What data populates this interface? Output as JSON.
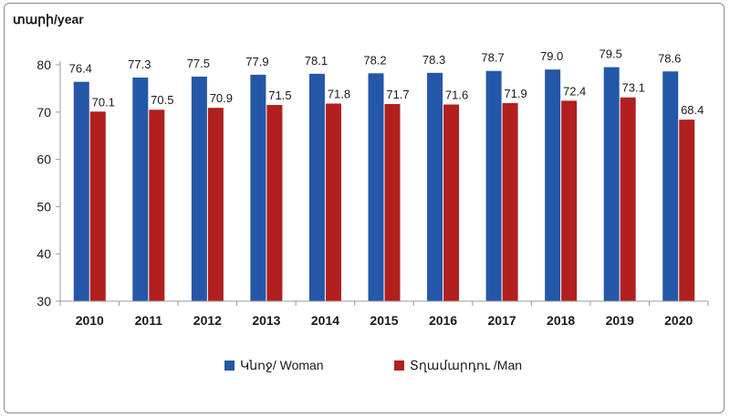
{
  "chart_data": {
    "type": "bar",
    "y_unit_label": "տարի/year",
    "categories": [
      "2010",
      "2011",
      "2012",
      "2013",
      "2014",
      "2015",
      "2016",
      "2017",
      "2018",
      "2019",
      "2020"
    ],
    "series": [
      {
        "name": "Կնոջ/ Woman",
        "color": "#2457a8",
        "values": [
          76.4,
          77.3,
          77.5,
          77.9,
          78.1,
          78.2,
          78.3,
          78.7,
          79.0,
          79.5,
          78.6
        ]
      },
      {
        "name": "Տղամարդու /Man",
        "color": "#b11f1f",
        "values": [
          70.1,
          70.5,
          70.9,
          71.5,
          71.8,
          71.7,
          71.6,
          71.9,
          72.4,
          73.1,
          68.4
        ]
      }
    ],
    "data_labels": [
      [
        "76.4",
        "77.3",
        "77.5",
        "77.9",
        "78.1",
        "78.2",
        "78.3",
        "78.7",
        "79.0",
        "79.5",
        "78.6"
      ],
      [
        "70.1",
        "70.5",
        "70.9",
        "71.5",
        "71.8",
        "71.7",
        "71.6",
        "71.9",
        "72.4",
        "73.1",
        "68.4"
      ]
    ],
    "ylim": [
      30,
      80
    ],
    "yticks": [
      "30",
      "40",
      "50",
      "60",
      "70",
      "80"
    ],
    "grid": false,
    "legend_position": "bottom"
  }
}
